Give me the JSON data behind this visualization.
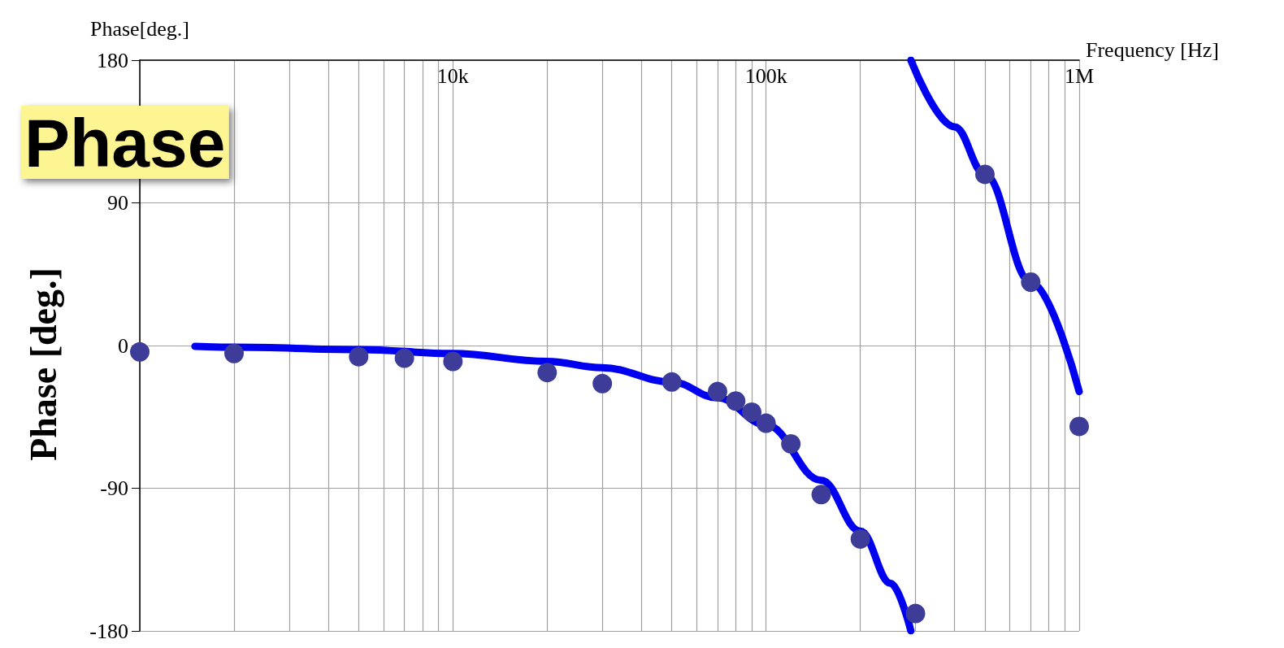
{
  "chart_data": {
    "type": "scatter",
    "title": "Phase",
    "xlabel": "Frequency [Hz]",
    "ylabel": "Phase[deg.]",
    "annotations": [
      "Phase [deg.]"
    ],
    "log": "x",
    "grid": true,
    "marker": "circle",
    "xlim": [
      1000,
      1000000
    ],
    "xticks": [
      {
        "value": 1000,
        "label": null
      },
      {
        "value": 2000,
        "label": null
      },
      {
        "value": 3000,
        "label": null
      },
      {
        "value": 4000,
        "label": null
      },
      {
        "value": 5000,
        "label": null
      },
      {
        "value": 6000,
        "label": null
      },
      {
        "value": 7000,
        "label": null
      },
      {
        "value": 8000,
        "label": null
      },
      {
        "value": 9000,
        "label": null
      },
      {
        "value": 10000,
        "label": "10k"
      },
      {
        "value": 20000,
        "label": null
      },
      {
        "value": 30000,
        "label": null
      },
      {
        "value": 40000,
        "label": null
      },
      {
        "value": 50000,
        "label": null
      },
      {
        "value": 60000,
        "label": null
      },
      {
        "value": 70000,
        "label": null
      },
      {
        "value": 80000,
        "label": null
      },
      {
        "value": 90000,
        "label": null
      },
      {
        "value": 100000,
        "label": "100k"
      },
      {
        "value": 200000,
        "label": null
      },
      {
        "value": 300000,
        "label": null
      },
      {
        "value": 400000,
        "label": null
      },
      {
        "value": 500000,
        "label": null
      },
      {
        "value": 600000,
        "label": null
      },
      {
        "value": 700000,
        "label": null
      },
      {
        "value": 800000,
        "label": null
      },
      {
        "value": 900000,
        "label": null
      },
      {
        "value": 1000000,
        "label": "1M"
      }
    ],
    "ylim": [
      -180,
      180
    ],
    "yticks": [
      -180,
      -90,
      0,
      90,
      180
    ],
    "series": [
      {
        "type": "line",
        "color": "#0000f0",
        "marker": "none",
        "x": [
          1500,
          2000,
          5000,
          10000,
          20000,
          30000,
          50000,
          70000,
          100000,
          150000,
          200000,
          250000,
          290000
        ],
        "values": [
          -0.5,
          -1,
          -2.5,
          -5,
          -10,
          -14,
          -23,
          -33,
          -50,
          -85,
          -117,
          -150,
          -180
        ]
      },
      {
        "type": "line",
        "color": "#0000f0",
        "marker": "none",
        "x": [
          290000,
          400000,
          500000,
          700000,
          1000000
        ],
        "values": [
          180,
          138,
          108,
          40,
          -29
        ]
      },
      {
        "color": "#3d3d99",
        "x": [
          1000,
          2000,
          5000,
          7000,
          10000,
          20000,
          30000,
          50000,
          70000,
          80000,
          90000,
          100000,
          120000,
          150000,
          200000,
          300000,
          500000,
          700000,
          1000000
        ],
        "values": [
          -4,
          -5,
          -7,
          -8,
          -10,
          -17,
          -24,
          -23,
          -29,
          -35,
          -42,
          -49,
          -62,
          -94,
          -122,
          -169,
          108,
          40,
          -51
        ]
      }
    ]
  }
}
